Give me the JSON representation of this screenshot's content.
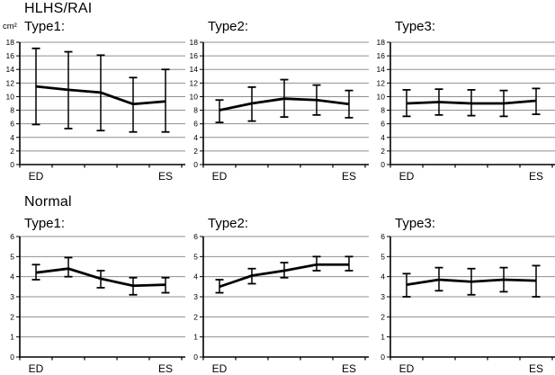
{
  "page": {
    "row1_header": "HLHS/RAI",
    "row2_header": "Normal",
    "unit_label": "cm²"
  },
  "style": {
    "grid_color": "#8f8f8f",
    "axis_color": "#000000",
    "series_color": "#000000",
    "background": "#ffffff"
  },
  "chart_data": [
    {
      "type": "line",
      "group": "HLHS/RAI",
      "title": "Type1:",
      "ylabel": "cm²",
      "categories": [
        "ED",
        "",
        "",
        "",
        "ES"
      ],
      "values": [
        11.5,
        11.0,
        10.6,
        8.9,
        9.3
      ],
      "err_high": [
        17.1,
        16.6,
        16.1,
        12.8,
        14.0
      ],
      "err_low": [
        5.9,
        5.3,
        5.0,
        4.8,
        4.8
      ],
      "ylim": [
        0,
        18
      ],
      "ytick_step": 2,
      "grid": true,
      "legend": "none"
    },
    {
      "type": "line",
      "group": "HLHS/RAI",
      "title": "Type2:",
      "ylabel": "cm²",
      "categories": [
        "ED",
        "",
        "",
        "",
        "ES"
      ],
      "values": [
        8.0,
        9.0,
        9.7,
        9.5,
        8.9
      ],
      "err_high": [
        9.5,
        11.4,
        12.5,
        11.7,
        10.9
      ],
      "err_low": [
        6.2,
        6.4,
        7.0,
        7.3,
        6.9
      ],
      "ylim": [
        0,
        18
      ],
      "ytick_step": 2,
      "grid": true,
      "legend": "none"
    },
    {
      "type": "line",
      "group": "HLHS/RAI",
      "title": "Type3:",
      "ylabel": "cm²",
      "categories": [
        "ED",
        "",
        "",
        "",
        "ES"
      ],
      "values": [
        9.0,
        9.2,
        9.0,
        9.0,
        9.4
      ],
      "err_high": [
        11.0,
        11.1,
        11.0,
        10.9,
        11.2
      ],
      "err_low": [
        7.1,
        7.3,
        7.2,
        7.1,
        7.4
      ],
      "ylim": [
        0,
        18
      ],
      "ytick_step": 2,
      "grid": true,
      "legend": "none"
    },
    {
      "type": "line",
      "group": "Normal",
      "title": "Type1:",
      "ylabel": "cm²",
      "categories": [
        "ED",
        "",
        "",
        "",
        "ES"
      ],
      "values": [
        4.2,
        4.4,
        3.9,
        3.55,
        3.6
      ],
      "err_high": [
        4.6,
        4.95,
        4.3,
        3.95,
        3.95
      ],
      "err_low": [
        3.85,
        4.0,
        3.45,
        3.1,
        3.2
      ],
      "ylim": [
        0,
        6
      ],
      "ytick_step": 1,
      "grid": true,
      "legend": "none"
    },
    {
      "type": "line",
      "group": "Normal",
      "title": "Type2:",
      "ylabel": "cm²",
      "categories": [
        "ED",
        "",
        "",
        "",
        "ES"
      ],
      "values": [
        3.5,
        4.05,
        4.3,
        4.6,
        4.6
      ],
      "err_high": [
        3.85,
        4.4,
        4.7,
        5.0,
        5.0
      ],
      "err_low": [
        3.2,
        3.65,
        3.95,
        4.3,
        4.3
      ],
      "ylim": [
        0,
        6
      ],
      "ytick_step": 1,
      "grid": true,
      "legend": "none"
    },
    {
      "type": "line",
      "group": "Normal",
      "title": "Type3:",
      "ylabel": "cm²",
      "categories": [
        "ED",
        "",
        "",
        "",
        "ES"
      ],
      "values": [
        3.6,
        3.85,
        3.75,
        3.85,
        3.8
      ],
      "err_high": [
        4.15,
        4.45,
        4.4,
        4.45,
        4.55
      ],
      "err_low": [
        3.0,
        3.3,
        3.1,
        3.25,
        3.0
      ],
      "ylim": [
        0,
        6
      ],
      "ytick_step": 1,
      "grid": true,
      "legend": "none"
    }
  ]
}
